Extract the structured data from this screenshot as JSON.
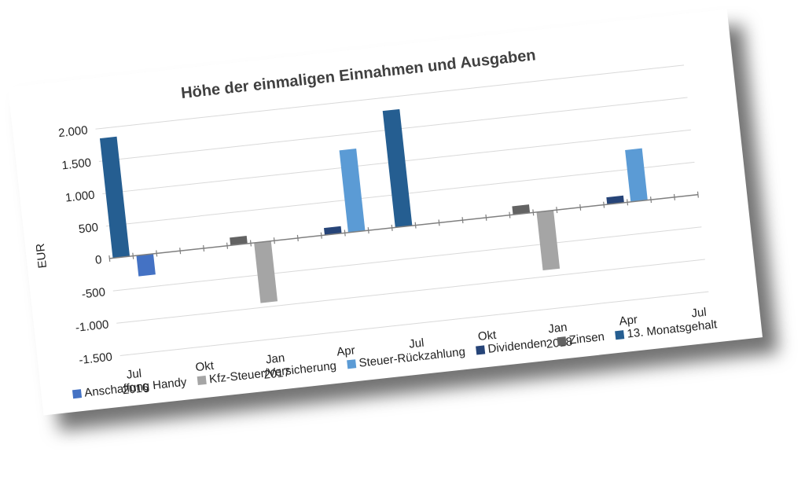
{
  "chart_data": {
    "type": "bar",
    "title": "Höhe der einmaligen Einnahmen und Ausgaben",
    "ylabel": "EUR",
    "ylim": [
      -1500,
      2000
    ],
    "yticks": [
      -1500,
      -1000,
      -500,
      0,
      500,
      1000,
      1500,
      2000
    ],
    "ytick_labels": [
      "-1.500",
      "-1.000",
      "-500",
      "0",
      "500",
      "1.000",
      "1.500",
      "2.000"
    ],
    "grid": true,
    "legend_position": "bottom",
    "x_month_range": [
      "2016-07",
      "2018-07"
    ],
    "x_tick_labels": [
      {
        "month": "2016-07",
        "lines": [
          "Jul",
          "2016"
        ]
      },
      {
        "month": "2016-10",
        "lines": [
          "Okt"
        ]
      },
      {
        "month": "2017-01",
        "lines": [
          "Jan",
          "2017"
        ]
      },
      {
        "month": "2017-04",
        "lines": [
          "Apr"
        ]
      },
      {
        "month": "2017-07",
        "lines": [
          "Jul"
        ]
      },
      {
        "month": "2017-10",
        "lines": [
          "Okt"
        ]
      },
      {
        "month": "2018-01",
        "lines": [
          "Jan",
          "2018"
        ]
      },
      {
        "month": "2018-04",
        "lines": [
          "Apr"
        ]
      },
      {
        "month": "2018-07",
        "lines": [
          "Jul"
        ]
      }
    ],
    "series": [
      {
        "name": "Anschaffung Handy",
        "color": "#4472C4",
        "points": [
          {
            "month": "2016-08",
            "value": -320
          }
        ]
      },
      {
        "name": "Kfz-Steuer/Versicherung",
        "color": "#A5A5A5",
        "points": [
          {
            "month": "2017-01",
            "value": -930
          },
          {
            "month": "2018-01",
            "value": -900
          }
        ]
      },
      {
        "name": "Steuer-Rückzahlung",
        "color": "#5B9BD5",
        "points": [
          {
            "month": "2017-05",
            "value": 1270
          },
          {
            "month": "2018-05",
            "value": 800
          }
        ]
      },
      {
        "name": "Dividenden",
        "color": "#264478",
        "points": [
          {
            "month": "2017-04",
            "value": 110
          },
          {
            "month": "2018-04",
            "value": 110
          }
        ]
      },
      {
        "name": "Zinsen",
        "color": "#636363",
        "points": [
          {
            "month": "2016-12",
            "value": 120
          },
          {
            "month": "2017-12",
            "value": 130
          }
        ]
      },
      {
        "name": "13. Monatsgehalt",
        "color": "#255E91",
        "points": [
          {
            "month": "2016-07",
            "value": 1850
          },
          {
            "month": "2017-07",
            "value": 1800
          }
        ]
      }
    ]
  }
}
